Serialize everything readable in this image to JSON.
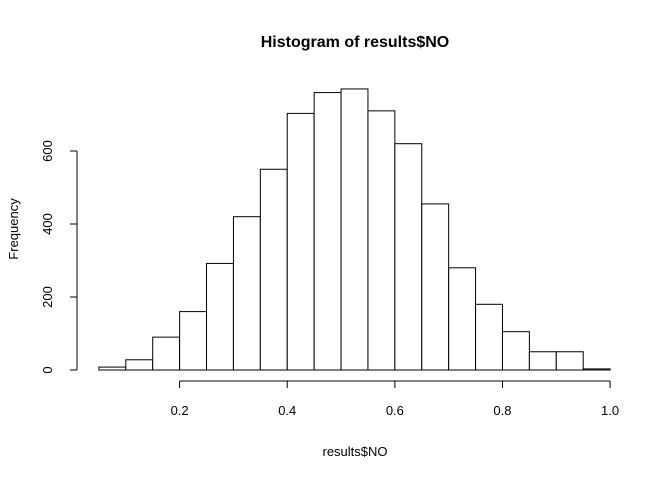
{
  "chart_data": {
    "type": "bar",
    "subtype": "histogram",
    "title": "Histogram of results$NO",
    "xlabel": "results$NO",
    "ylabel": "Frequency",
    "xlim": [
      0.05,
      1.0
    ],
    "ylim": [
      0,
      780
    ],
    "bin_width": 0.05,
    "bins": [
      {
        "x0": 0.05,
        "x1": 0.1,
        "count": 8
      },
      {
        "x0": 0.1,
        "x1": 0.15,
        "count": 28
      },
      {
        "x0": 0.15,
        "x1": 0.2,
        "count": 90
      },
      {
        "x0": 0.2,
        "x1": 0.25,
        "count": 160
      },
      {
        "x0": 0.25,
        "x1": 0.3,
        "count": 292
      },
      {
        "x0": 0.3,
        "x1": 0.35,
        "count": 420
      },
      {
        "x0": 0.35,
        "x1": 0.4,
        "count": 550
      },
      {
        "x0": 0.4,
        "x1": 0.45,
        "count": 703
      },
      {
        "x0": 0.45,
        "x1": 0.5,
        "count": 760
      },
      {
        "x0": 0.5,
        "x1": 0.55,
        "count": 770
      },
      {
        "x0": 0.55,
        "x1": 0.6,
        "count": 710
      },
      {
        "x0": 0.6,
        "x1": 0.65,
        "count": 620
      },
      {
        "x0": 0.65,
        "x1": 0.7,
        "count": 455
      },
      {
        "x0": 0.7,
        "x1": 0.75,
        "count": 280
      },
      {
        "x0": 0.75,
        "x1": 0.8,
        "count": 180
      },
      {
        "x0": 0.8,
        "x1": 0.85,
        "count": 105
      },
      {
        "x0": 0.85,
        "x1": 0.9,
        "count": 50
      },
      {
        "x0": 0.9,
        "x1": 0.95,
        "count": 50
      },
      {
        "x0": 0.95,
        "x1": 1.0,
        "count": 3
      }
    ],
    "x_ticks": [
      {
        "value": 0.2,
        "label": "0.2"
      },
      {
        "value": 0.4,
        "label": "0.4"
      },
      {
        "value": 0.6,
        "label": "0.6"
      },
      {
        "value": 0.8,
        "label": "0.8"
      },
      {
        "value": 1.0,
        "label": "1.0"
      }
    ],
    "y_ticks": [
      {
        "value": 0,
        "label": "0"
      },
      {
        "value": 200,
        "label": "200"
      },
      {
        "value": 400,
        "label": "400"
      },
      {
        "value": 600,
        "label": "600"
      }
    ],
    "grid": false,
    "colors": {
      "bar_fill": "#ffffff",
      "bar_stroke": "#000000",
      "background": "#ffffff"
    }
  }
}
